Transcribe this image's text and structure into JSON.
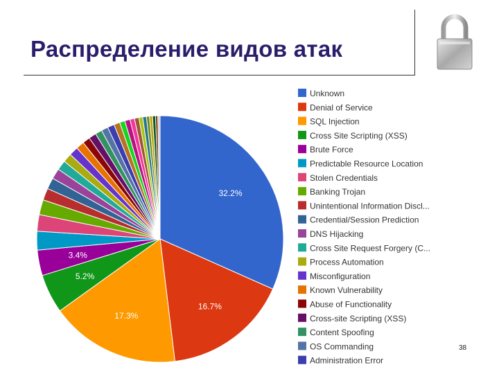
{
  "slide": {
    "title": "Распределение видов атак",
    "page_number": "38"
  },
  "chart_data": {
    "type": "pie",
    "title": "",
    "legend_position": "right",
    "slices": [
      {
        "label": "Unknown",
        "value": 32.2,
        "color": "#3366cc",
        "value_label": "32.2%"
      },
      {
        "label": "Denial of Service",
        "value": 16.7,
        "color": "#dc3912",
        "value_label": "16.7%"
      },
      {
        "label": "SQL Injection",
        "value": 17.3,
        "color": "#ff9900",
        "value_label": "17.3%"
      },
      {
        "label": "Cross Site Scripting (XSS)",
        "value": 5.2,
        "color": "#109618",
        "value_label": "5.2%"
      },
      {
        "label": "Brute Force",
        "value": 3.4,
        "color": "#990099",
        "value_label": "3.4%"
      },
      {
        "label": "Predictable Resource Location",
        "value": 2.5,
        "color": "#0099c6",
        "value_label": ""
      },
      {
        "label": "Stolen Credentials",
        "value": 2.2,
        "color": "#dd4477",
        "value_label": ""
      },
      {
        "label": "Banking Trojan",
        "value": 2.0,
        "color": "#66aa00",
        "value_label": ""
      },
      {
        "label": "Unintentional Information Discl...",
        "value": 1.6,
        "color": "#b82e2e",
        "value_label": ""
      },
      {
        "label": "Credential/Session Prediction",
        "value": 1.5,
        "color": "#316395",
        "value_label": ""
      },
      {
        "label": "DNS Hijacking",
        "value": 1.4,
        "color": "#994499",
        "value_label": ""
      },
      {
        "label": "Cross Site Request Forgery (C...",
        "value": 1.3,
        "color": "#22aa99",
        "value_label": ""
      },
      {
        "label": "Process Automation",
        "value": 1.2,
        "color": "#aaaa11",
        "value_label": ""
      },
      {
        "label": "Misconfiguration",
        "value": 1.2,
        "color": "#6633cc",
        "value_label": ""
      },
      {
        "label": "Known Vulnerability",
        "value": 1.1,
        "color": "#e67300",
        "value_label": ""
      },
      {
        "label": "Abuse of Functionality",
        "value": 1.0,
        "color": "#8b0707",
        "value_label": ""
      },
      {
        "label": "Cross-site Scripting (XSS)",
        "value": 1.0,
        "color": "#651067",
        "value_label": ""
      },
      {
        "label": "Content Spoofing",
        "value": 0.9,
        "color": "#329262",
        "value_label": ""
      },
      {
        "label": "OS Commanding",
        "value": 0.9,
        "color": "#5574a6",
        "value_label": ""
      },
      {
        "label": "Administration Error",
        "value": 0.9,
        "color": "#3b3eac",
        "value_label": ""
      },
      {
        "label": "",
        "value": 0.8,
        "color": "#b77322",
        "value_label": ""
      },
      {
        "label": "",
        "value": 0.7,
        "color": "#16d620",
        "value_label": ""
      },
      {
        "label": "",
        "value": 0.7,
        "color": "#b91383",
        "value_label": ""
      },
      {
        "label": "",
        "value": 0.6,
        "color": "#f4359e",
        "value_label": ""
      },
      {
        "label": "",
        "value": 0.6,
        "color": "#9c5935",
        "value_label": ""
      },
      {
        "label": "",
        "value": 0.5,
        "color": "#a9c413",
        "value_label": ""
      },
      {
        "label": "",
        "value": 0.5,
        "color": "#2a778d",
        "value_label": ""
      },
      {
        "label": "",
        "value": 0.4,
        "color": "#668d1c",
        "value_label": ""
      },
      {
        "label": "",
        "value": 0.4,
        "color": "#bea413",
        "value_label": ""
      },
      {
        "label": "",
        "value": 0.4,
        "color": "#0c5922",
        "value_label": ""
      },
      {
        "label": "",
        "value": 0.3,
        "color": "#743411",
        "value_label": ""
      },
      {
        "label": "",
        "value": 0.3,
        "color": "#cccccc",
        "value_label": ""
      }
    ]
  }
}
